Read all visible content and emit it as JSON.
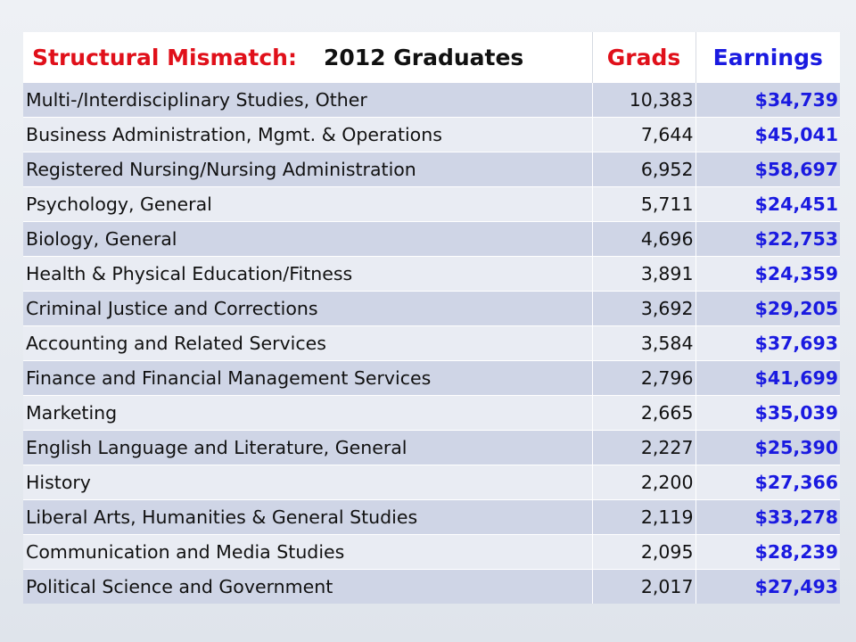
{
  "table": {
    "title_part1": "Structural Mismatch:",
    "title_part2": "2012 Graduates",
    "header_grads": "Grads",
    "header_earnings": "Earnings",
    "rows": [
      {
        "major": "Multi-/Interdisciplinary Studies, Other",
        "grads": "10,383",
        "earnings": "$34,739"
      },
      {
        "major": "Business Administration, Mgmt. & Operations",
        "grads": "7,644",
        "earnings": "$45,041"
      },
      {
        "major": "Registered Nursing/Nursing Administration",
        "grads": "6,952",
        "earnings": "$58,697"
      },
      {
        "major": "Psychology, General",
        "grads": "5,711",
        "earnings": "$24,451"
      },
      {
        "major": "Biology, General",
        "grads": "4,696",
        "earnings": "$22,753"
      },
      {
        "major": "Health & Physical Education/Fitness",
        "grads": "3,891",
        "earnings": "$24,359"
      },
      {
        "major": "Criminal Justice and Corrections",
        "grads": "3,692",
        "earnings": "$29,205"
      },
      {
        "major": "Accounting and Related Services",
        "grads": "3,584",
        "earnings": "$37,693"
      },
      {
        "major": "Finance and Financial Management Services",
        "grads": "2,796",
        "earnings": "$41,699"
      },
      {
        "major": "Marketing",
        "grads": "2,665",
        "earnings": "$35,039"
      },
      {
        "major": "English Language and Literature, General",
        "grads": "2,227",
        "earnings": "$25,390"
      },
      {
        "major": "History",
        "grads": "2,200",
        "earnings": "$27,366"
      },
      {
        "major": "Liberal Arts, Humanities & General Studies",
        "grads": "2,119",
        "earnings": "$33,278"
      },
      {
        "major": "Communication and Media Studies",
        "grads": "2,095",
        "earnings": "$28,239"
      },
      {
        "major": "Political Science and Government",
        "grads": "2,017",
        "earnings": "$27,493"
      }
    ]
  },
  "colors": {
    "title_red": "#e0101a",
    "earnings_blue": "#1a1ae0",
    "row_dark": "#cfd5e6",
    "row_light": "#e9ecf3"
  }
}
